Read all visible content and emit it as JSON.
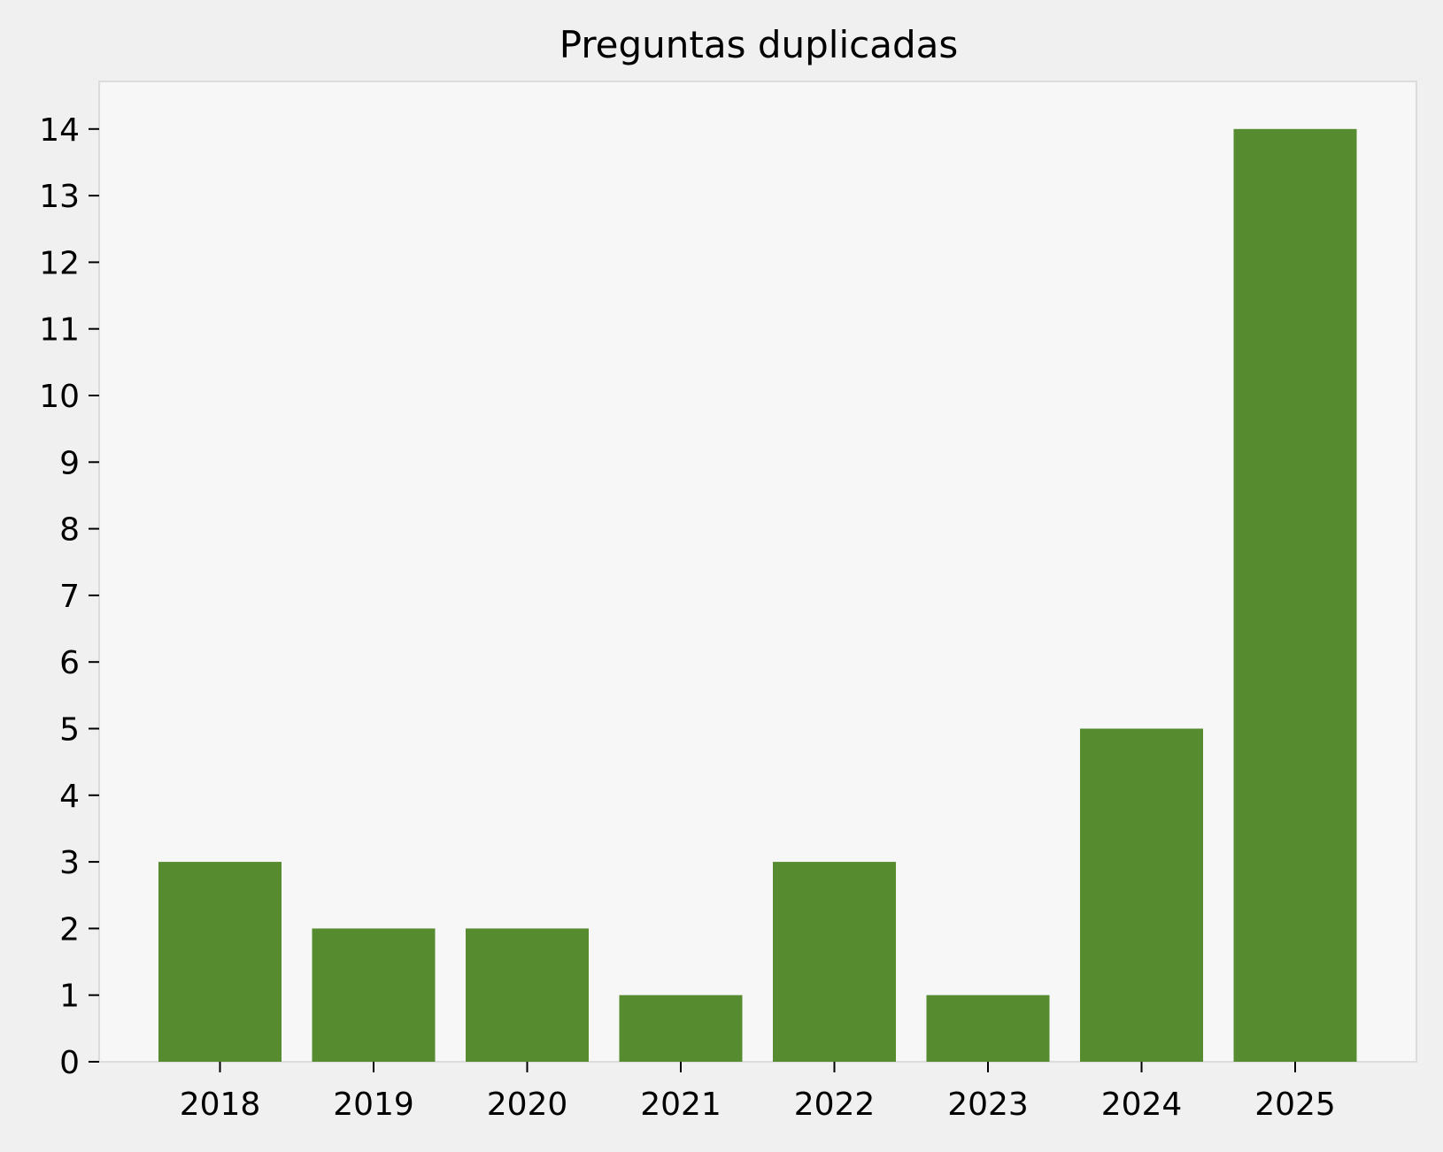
{
  "colors": {
    "figure_background": "#f0f0f0",
    "plot_background": "#f7f7f7",
    "bar": "#568c2f",
    "frame": "#dcdcdc",
    "text": "#000000"
  },
  "chart_data": {
    "type": "bar",
    "title": "Preguntas duplicadas",
    "xlabel": "",
    "ylabel": "",
    "categories": [
      "2018",
      "2019",
      "2020",
      "2021",
      "2022",
      "2023",
      "2024",
      "2025"
    ],
    "values": [
      3,
      2,
      2,
      1,
      3,
      1,
      5,
      14
    ],
    "ylim": [
      0,
      14.7
    ],
    "yticks": [
      0,
      1,
      2,
      3,
      4,
      5,
      6,
      7,
      8,
      9,
      10,
      11,
      12,
      13,
      14
    ],
    "grid": false,
    "legend": "none"
  }
}
